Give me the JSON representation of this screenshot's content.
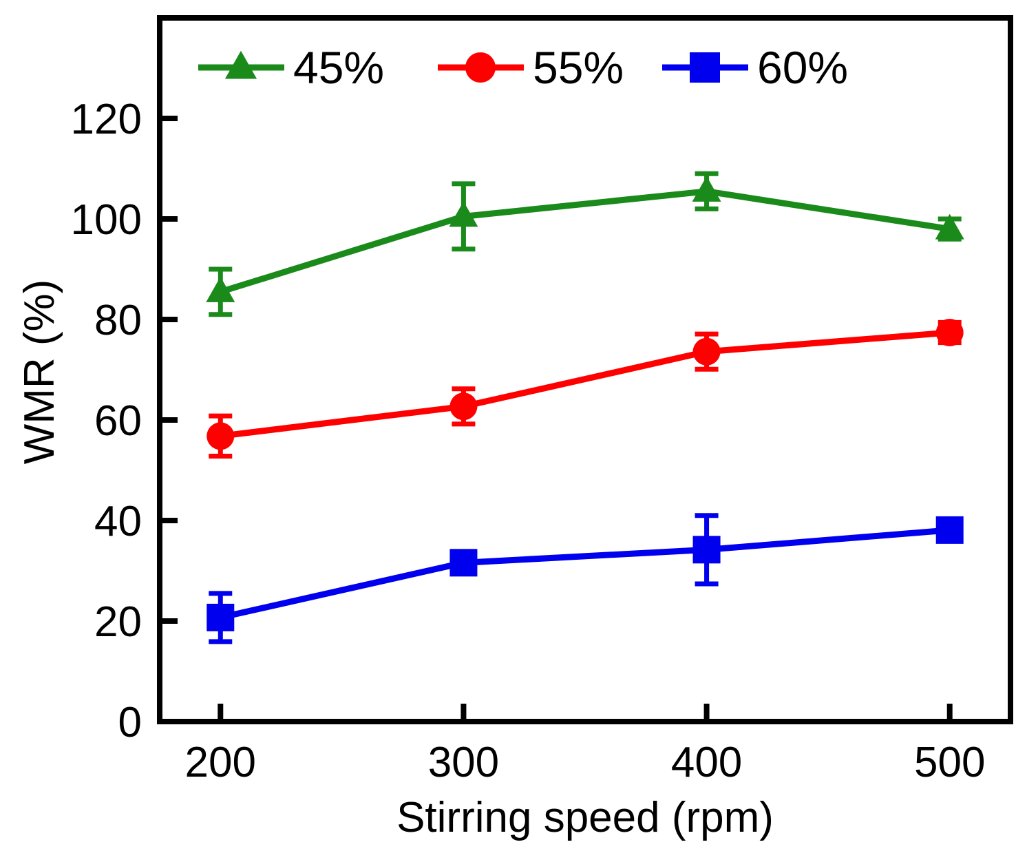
{
  "chart_data": {
    "type": "line",
    "title": "",
    "xlabel": "Stirring speed (rpm)",
    "ylabel": "WMR (%)",
    "x": [
      200,
      300,
      400,
      500
    ],
    "xlim": [
      175,
      525
    ],
    "ylim": [
      0,
      140
    ],
    "xticks": [
      200,
      300,
      400,
      500
    ],
    "xtick_labels": [
      "200",
      "300",
      "400",
      "500"
    ],
    "yticks": [
      0,
      20,
      40,
      60,
      80,
      100,
      120
    ],
    "ytick_labels": [
      "0",
      "20",
      "40",
      "60",
      "80",
      "100",
      "120"
    ],
    "grid": false,
    "legend_position": "top",
    "series": [
      {
        "name": "45%",
        "marker": "triangle",
        "color": "#1a8a1a",
        "values": [
          85.5,
          100.5,
          105.5,
          98.0
        ],
        "errors": [
          4.5,
          6.5,
          3.5,
          2.0
        ]
      },
      {
        "name": "55%",
        "marker": "circle",
        "color": "#ff0000",
        "values": [
          56.8,
          62.7,
          73.6,
          77.4
        ],
        "errors": [
          4.0,
          3.5,
          3.5,
          2.0
        ]
      },
      {
        "name": "60%",
        "marker": "square",
        "color": "#0000ee",
        "values": [
          20.7,
          31.6,
          34.2,
          38.1
        ],
        "errors": [
          4.8,
          1.5,
          6.8,
          1.5
        ]
      }
    ]
  }
}
